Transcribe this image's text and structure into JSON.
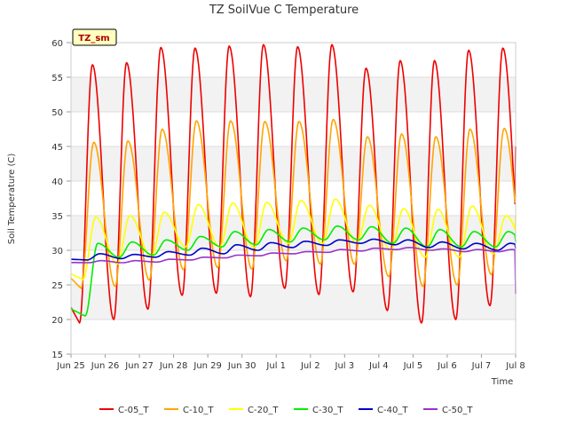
{
  "chart_data": {
    "type": "line",
    "title": "TZ SoilVue C Temperature",
    "xlabel": "Time",
    "ylabel": "Soil Temperature (C)",
    "annotation": "TZ_sm",
    "ylim": [
      15,
      60
    ],
    "yticks": [
      15,
      20,
      25,
      30,
      35,
      40,
      45,
      50,
      55,
      60
    ],
    "xlim": [
      "2024-06-25",
      "2024-07-08"
    ],
    "xtick_labels": [
      "Jun 25",
      "Jun 26",
      "Jun 27",
      "Jun 28",
      "Jun 29",
      "Jun 30",
      "Jul 1",
      "Jul 2",
      "Jul 3",
      "Jul 4",
      "Jul 5",
      "Jul 6",
      "Jul 7",
      "Jul 8"
    ],
    "grid": "horizontal bands",
    "legend_position": "bottom",
    "series": [
      {
        "name": "C-05_T",
        "color": "#ee0000",
        "daily_min": [
          19.5,
          20.0,
          21.5,
          23.5,
          23.8,
          23.3,
          24.5,
          23.6,
          24.0,
          21.3,
          19.5,
          20.0,
          22.0
        ],
        "daily_max": [
          56.8,
          57.1,
          59.3,
          59.2,
          59.5,
          59.7,
          59.4,
          59.7,
          56.3,
          57.4,
          57.4,
          58.9,
          59.2
        ],
        "last": 45.0
      },
      {
        "name": "C-10_T",
        "color": "#ffa500",
        "daily_min": [
          24.5,
          24.8,
          25.7,
          27.2,
          27.5,
          27.3,
          28.5,
          28.0,
          28.0,
          26.2,
          24.8,
          25.0,
          26.5
        ],
        "daily_max": [
          45.6,
          45.8,
          47.5,
          48.7,
          48.7,
          48.6,
          48.6,
          48.9,
          46.4,
          46.8,
          46.4,
          47.5,
          47.6
        ],
        "last": 38.0
      },
      {
        "name": "C-20_T",
        "color": "#ffff00",
        "daily_min": [
          25.8,
          28.0,
          29.0,
          30.5,
          30.5,
          30.4,
          31.0,
          31.0,
          31.0,
          30.0,
          29.0,
          29.0,
          29.5
        ],
        "daily_max": [
          34.8,
          35.0,
          35.5,
          36.6,
          36.8,
          36.9,
          37.2,
          37.4,
          36.5,
          36.0,
          35.9,
          36.4,
          35.0
        ],
        "last": 35.0
      },
      {
        "name": "C-30_T",
        "color": "#00ee00",
        "daily_min": [
          20.5,
          29.0,
          29.3,
          30.0,
          30.5,
          30.8,
          31.2,
          31.5,
          31.5,
          31.0,
          30.5,
          30.5,
          30.5
        ],
        "daily_max": [
          31.0,
          31.2,
          31.5,
          32.0,
          32.7,
          33.0,
          33.2,
          33.5,
          33.4,
          33.2,
          33.0,
          32.7,
          32.7
        ],
        "last": 31.2
      },
      {
        "name": "C-40_T",
        "color": "#0000cc",
        "daily_min": [
          28.6,
          28.8,
          29.0,
          29.3,
          29.5,
          30.0,
          30.4,
          30.7,
          31.0,
          30.8,
          30.4,
          30.2,
          30.0
        ],
        "daily_max": [
          29.5,
          29.4,
          29.8,
          30.3,
          30.8,
          31.1,
          31.3,
          31.5,
          31.6,
          31.5,
          31.2,
          31.0,
          31.0
        ],
        "last": 30.3
      },
      {
        "name": "C-50_T",
        "color": "#9933cc",
        "daily_min": [
          28.2,
          28.2,
          28.3,
          28.6,
          28.9,
          29.2,
          29.5,
          29.7,
          29.9,
          30.1,
          30.0,
          29.8,
          29.8
        ],
        "daily_max": [
          28.5,
          28.5,
          28.7,
          29.0,
          29.3,
          29.6,
          29.8,
          30.1,
          30.3,
          30.4,
          30.2,
          30.1,
          30.1
        ],
        "last": 23.7
      }
    ]
  }
}
